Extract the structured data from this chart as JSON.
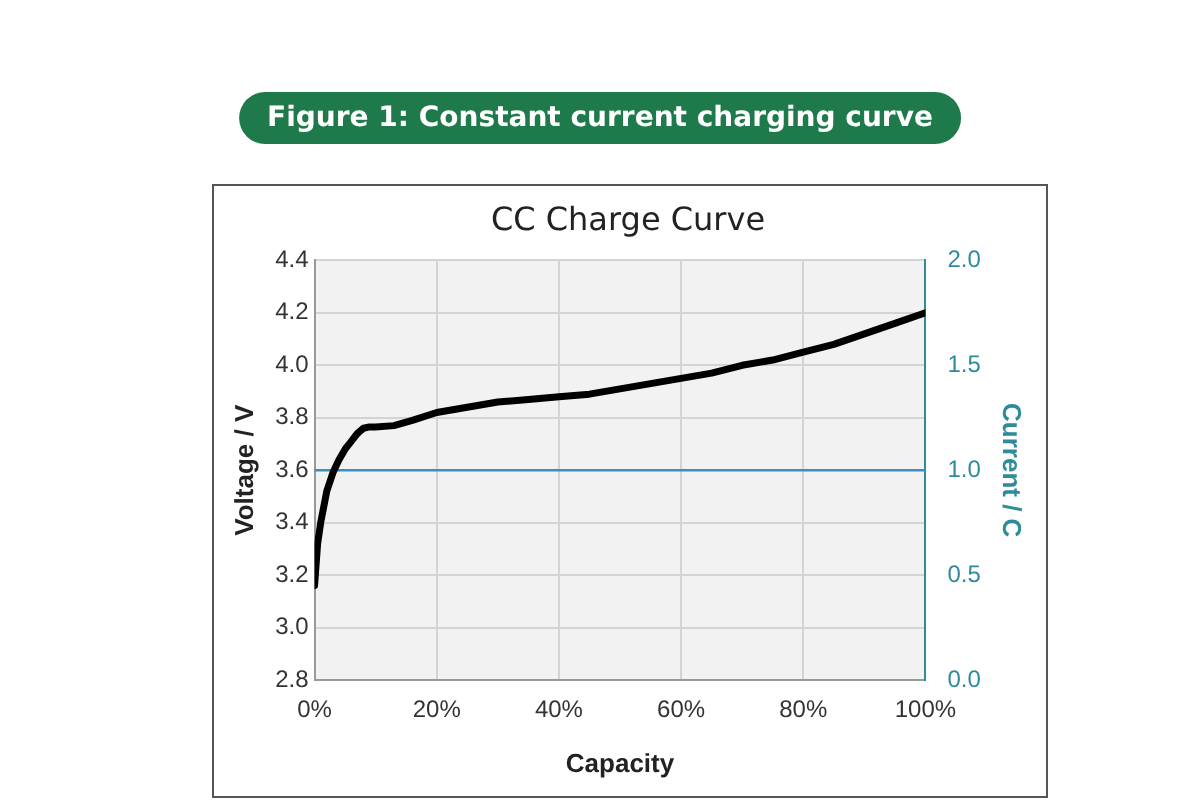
{
  "chart_data": {
    "type": "line",
    "title": "Figure 1: Constant current charging curve",
    "subtitle": "CC Charge Curve",
    "xlabel": "Capacity",
    "ylabel": "Voltage / V",
    "y2label": "Current / C",
    "x": [
      0,
      0.5,
      1,
      2,
      3,
      4,
      5,
      6,
      7,
      8,
      9,
      10,
      13,
      16,
      20,
      25,
      30,
      35,
      40,
      45,
      50,
      55,
      60,
      65,
      70,
      75,
      80,
      85,
      90,
      95,
      100
    ],
    "series": [
      {
        "color": "#000000",
        "values": [
          3.16,
          3.32,
          3.4,
          3.52,
          3.59,
          3.64,
          3.68,
          3.71,
          3.74,
          3.76,
          3.765,
          3.765,
          3.77,
          3.79,
          3.82,
          3.84,
          3.86,
          3.87,
          3.88,
          3.89,
          3.91,
          3.93,
          3.95,
          3.97,
          4.0,
          4.02,
          4.05,
          4.08,
          4.12,
          4.16,
          4.2
        ]
      },
      {
        "color": "#3a8fc0",
        "axis": "y2",
        "values": [
          1.0,
          1.0,
          1.0,
          1.0,
          1.0,
          1.0,
          1.0,
          1.0,
          1.0,
          1.0,
          1.0,
          1.0,
          1.0,
          1.0,
          1.0,
          1.0,
          1.0,
          1.0,
          1.0,
          1.0,
          1.0,
          1.0,
          1.0,
          1.0,
          1.0,
          1.0,
          1.0,
          1.0,
          1.0,
          1.0,
          1.0
        ]
      }
    ],
    "xlim": [
      0,
      100
    ],
    "xticks": [
      {
        "value": 0,
        "label": "0%"
      },
      {
        "value": 20,
        "label": "20%"
      },
      {
        "value": 40,
        "label": "40%"
      },
      {
        "value": 60,
        "label": "60%"
      },
      {
        "value": 80,
        "label": "80%"
      },
      {
        "value": 100,
        "label": "100%"
      }
    ],
    "ylim": [
      2.8,
      4.4
    ],
    "yticks": [
      {
        "value": 2.8,
        "label": "2.8"
      },
      {
        "value": 3,
        "label": "3.0"
      },
      {
        "value": 3.2,
        "label": "3.2"
      },
      {
        "value": 3.4,
        "label": "3.4"
      },
      {
        "value": 3.6,
        "label": "3.6"
      },
      {
        "value": 3.8,
        "label": "3.8"
      },
      {
        "value": 4,
        "label": "4.0"
      },
      {
        "value": 4.2,
        "label": "4.2"
      },
      {
        "value": 4.4,
        "label": "4.4"
      }
    ],
    "y2lim": [
      0,
      2
    ],
    "y2ticks": [
      {
        "value": 0,
        "label": "0.0"
      },
      {
        "value": 0.5,
        "label": "0.5"
      },
      {
        "value": 1,
        "label": "1.0"
      },
      {
        "value": 1.5,
        "label": "1.5"
      },
      {
        "value": 2,
        "label": "2.0"
      }
    ],
    "grid": true,
    "legend": false,
    "marker": "none",
    "line_style": "solid"
  }
}
